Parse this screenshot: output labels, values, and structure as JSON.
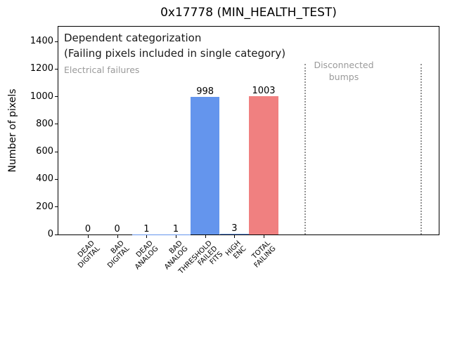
{
  "window": {
    "background": "#ffffff"
  },
  "chart_data": {
    "type": "bar",
    "title": "0x17778 (MIN_HEALTH_TEST)",
    "xlabel": "",
    "ylabel": "Number of pixels",
    "ylim": [
      0,
      1500
    ],
    "y_ticks": [
      0,
      200,
      400,
      600,
      800,
      1000,
      1200,
      1400
    ],
    "grid": false,
    "legend": null,
    "categories": [
      [
        "DEAD",
        "DIGITAL"
      ],
      [
        "BAD",
        "DIGITAL"
      ],
      [
        "DEAD",
        "ANALOG"
      ],
      [
        "BAD",
        "ANALOG"
      ],
      [
        "THRESHOLD",
        "FAILED",
        "FITS"
      ],
      [
        "HIGH",
        "ENC"
      ],
      [
        "TOTAL",
        "FAILING"
      ]
    ],
    "values": [
      0,
      0,
      1,
      1,
      998,
      3,
      1003
    ],
    "value_labels": [
      "0",
      "0",
      "1",
      "1",
      "998",
      "3",
      "1003"
    ],
    "bar_colors": [
      "#6495ED",
      "#6495ED",
      "#6495ED",
      "#6495ED",
      "#6495ED",
      "#6495ED",
      "#F08080"
    ],
    "separator_xs_frac": [
      0.649,
      0.953
    ],
    "annotations": {
      "dependent_line1": "Dependent categorization",
      "dependent_line2": "(Failing pixels included in single category)",
      "electrical": "Electrical failures",
      "disconnected_line1": "Disconnected",
      "disconnected_line2": "bumps"
    }
  },
  "colors": {
    "bar_blue": "#6495ED",
    "bar_red": "#F08080",
    "annotation_gray": "#9a9a9a",
    "separator_gray": "#949494",
    "axis_black": "#000000"
  }
}
